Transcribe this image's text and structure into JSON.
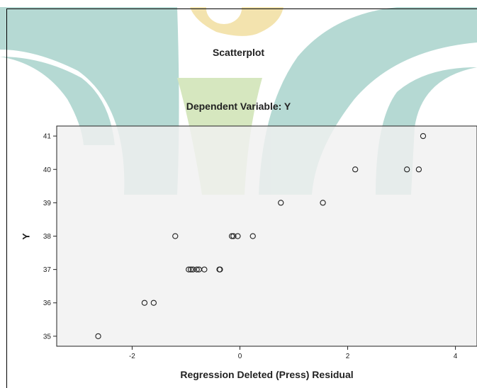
{
  "chart_data": {
    "type": "scatter",
    "title": "Scatterplot",
    "subtitle": "Dependent Variable: Y",
    "xlabel": "Regression Deleted (Press) Residual",
    "ylabel": "Y",
    "xlim": [
      -3.4,
      4.4
    ],
    "ylim": [
      34.7,
      41.3
    ],
    "xticks": [
      -2,
      0,
      2,
      4
    ],
    "yticks": [
      35,
      36,
      37,
      38,
      39,
      40,
      41
    ],
    "grid": false,
    "points": [
      {
        "x": -2.63,
        "y": 35
      },
      {
        "x": -1.77,
        "y": 36
      },
      {
        "x": -1.6,
        "y": 36
      },
      {
        "x": -0.95,
        "y": 37
      },
      {
        "x": -0.91,
        "y": 37
      },
      {
        "x": -0.87,
        "y": 37
      },
      {
        "x": -0.8,
        "y": 37
      },
      {
        "x": -0.76,
        "y": 37
      },
      {
        "x": -0.66,
        "y": 37
      },
      {
        "x": -0.38,
        "y": 37
      },
      {
        "x": -0.37,
        "y": 37
      },
      {
        "x": -1.2,
        "y": 38
      },
      {
        "x": -0.15,
        "y": 38
      },
      {
        "x": -0.12,
        "y": 38
      },
      {
        "x": -0.04,
        "y": 38
      },
      {
        "x": 0.24,
        "y": 38
      },
      {
        "x": 0.76,
        "y": 39
      },
      {
        "x": 1.54,
        "y": 39
      },
      {
        "x": 2.14,
        "y": 40
      },
      {
        "x": 3.1,
        "y": 40
      },
      {
        "x": 3.32,
        "y": 40
      },
      {
        "x": 3.4,
        "y": 41
      }
    ]
  },
  "colors": {
    "plot_background": "#f0f0f0",
    "marker_stroke": "#222222",
    "watermark_teal": "#a9d3cc",
    "watermark_yellow": "#f2dfa0",
    "watermark_green": "#cfe3b5"
  }
}
